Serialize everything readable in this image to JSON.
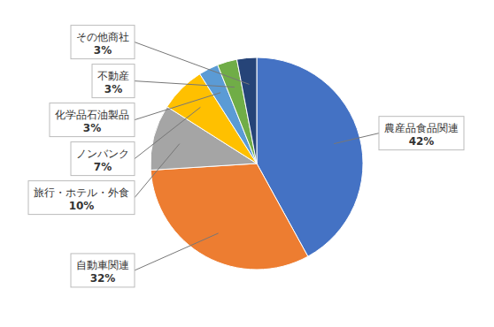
{
  "chart_data": {
    "type": "pie",
    "categories": [
      "農産品食品関連",
      "自動車関連",
      "旅行・ホテル・外食",
      "ノンバンク",
      "化学品石油製品",
      "不動産",
      "その他商社"
    ],
    "values": [
      42,
      32,
      10,
      7,
      3,
      3,
      3
    ],
    "value_labels": [
      "42%",
      "32%",
      "10%",
      "7%",
      "3%",
      "3%",
      "3%"
    ],
    "colors": [
      "#4472C4",
      "#ED7D31",
      "#A5A5A5",
      "#FFC000",
      "#5B9BD5",
      "#70AD47",
      "#264478"
    ],
    "data_labels": true
  }
}
